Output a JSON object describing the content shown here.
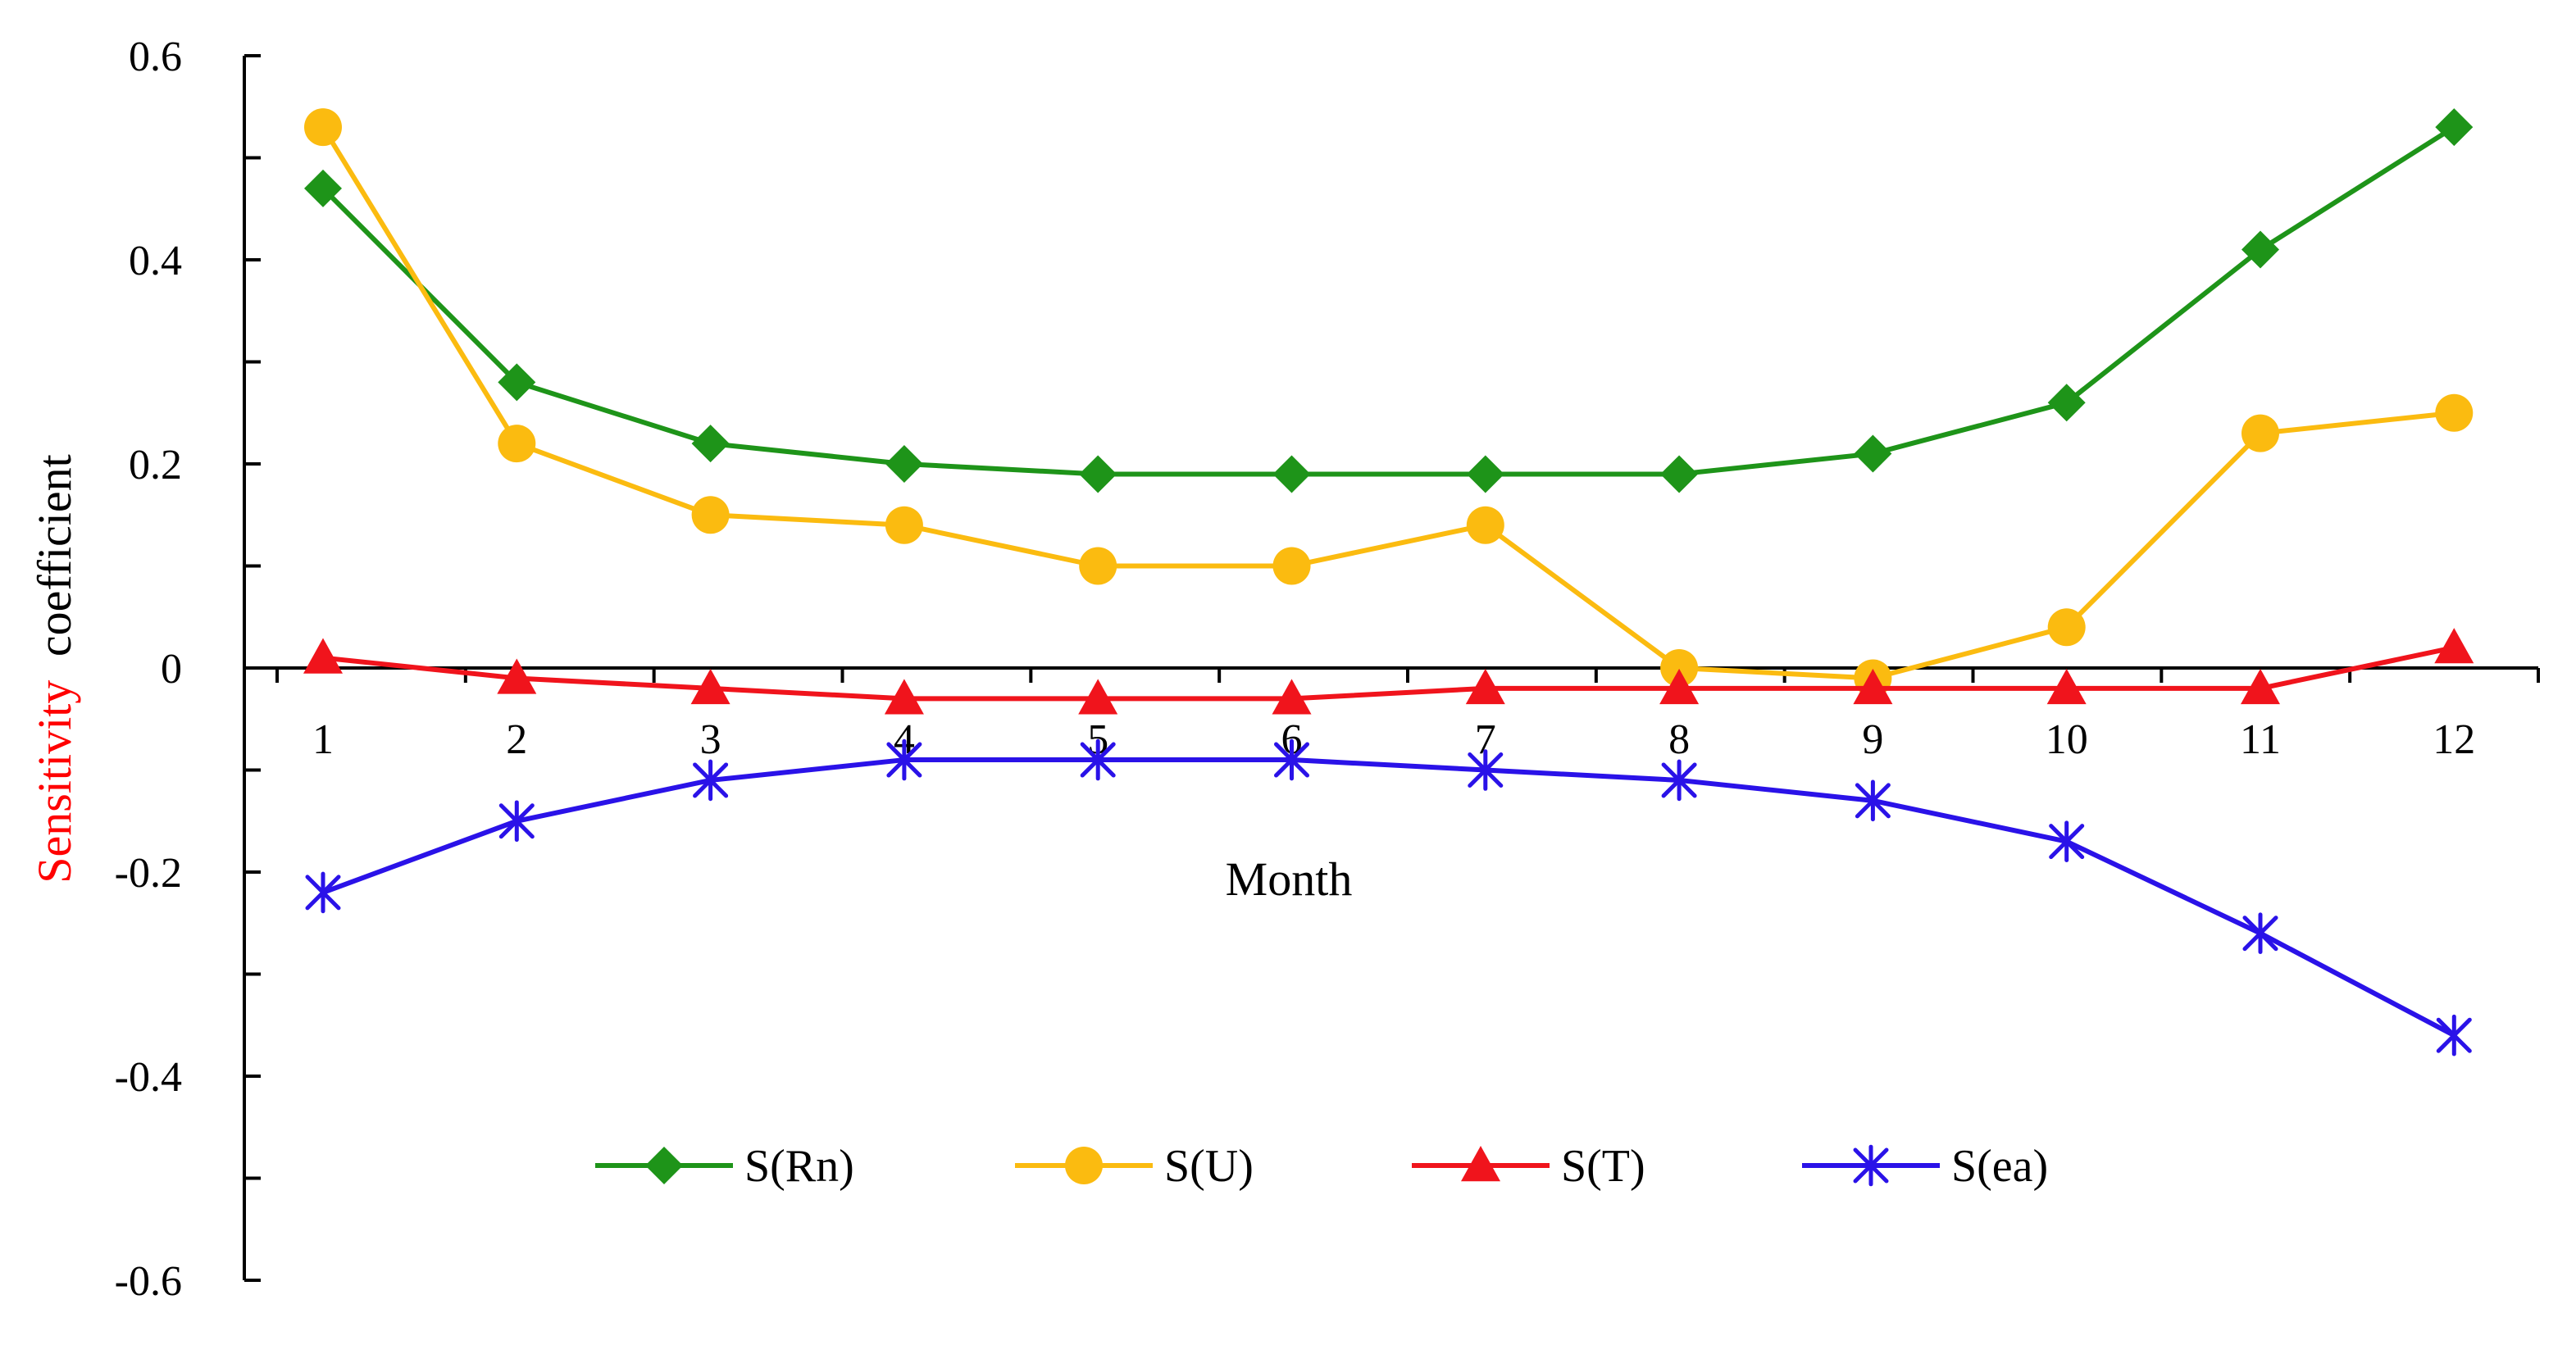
{
  "chart_data": {
    "type": "line",
    "x": [
      1,
      2,
      3,
      4,
      5,
      6,
      7,
      8,
      9,
      10,
      11,
      12
    ],
    "xlabel": "Month",
    "ylabel_parts": [
      "Sensitivity",
      "coefficient"
    ],
    "ylim": [
      -0.6,
      0.6
    ],
    "y_ticks": [
      "0.6",
      "0.4",
      "0.2",
      "0",
      "-0.2",
      "-0.4",
      "-0.6"
    ],
    "x_ticks": [
      "1",
      "2",
      "3",
      "4",
      "5",
      "6",
      "7",
      "8",
      "9",
      "10",
      "11",
      "12"
    ],
    "grid": false,
    "legend_position": "bottom-center",
    "series": [
      {
        "name": "S(Rn)",
        "color": "#1e9419",
        "marker": "diamond",
        "values": [
          0.47,
          0.28,
          0.22,
          0.2,
          0.19,
          0.19,
          0.19,
          0.19,
          0.21,
          0.26,
          0.41,
          0.53
        ]
      },
      {
        "name": "S(U)",
        "color": "#fbbb10",
        "marker": "circle",
        "values": [
          0.53,
          0.22,
          0.15,
          0.14,
          0.1,
          0.1,
          0.14,
          0.0,
          -0.01,
          0.04,
          0.23,
          0.25
        ]
      },
      {
        "name": "S(T)",
        "color": "#f0141c",
        "marker": "triangle",
        "values": [
          0.01,
          -0.01,
          -0.02,
          -0.03,
          -0.03,
          -0.03,
          -0.02,
          -0.02,
          -0.02,
          -0.02,
          -0.02,
          0.02
        ]
      },
      {
        "name": "S(ea)",
        "color": "#2a12e8",
        "marker": "star",
        "values": [
          -0.22,
          -0.15,
          -0.11,
          -0.09,
          -0.09,
          -0.09,
          -0.1,
          -0.11,
          -0.13,
          -0.17,
          -0.26,
          -0.36
        ]
      }
    ],
    "ylabel_highlight_color": "#ff0000"
  }
}
